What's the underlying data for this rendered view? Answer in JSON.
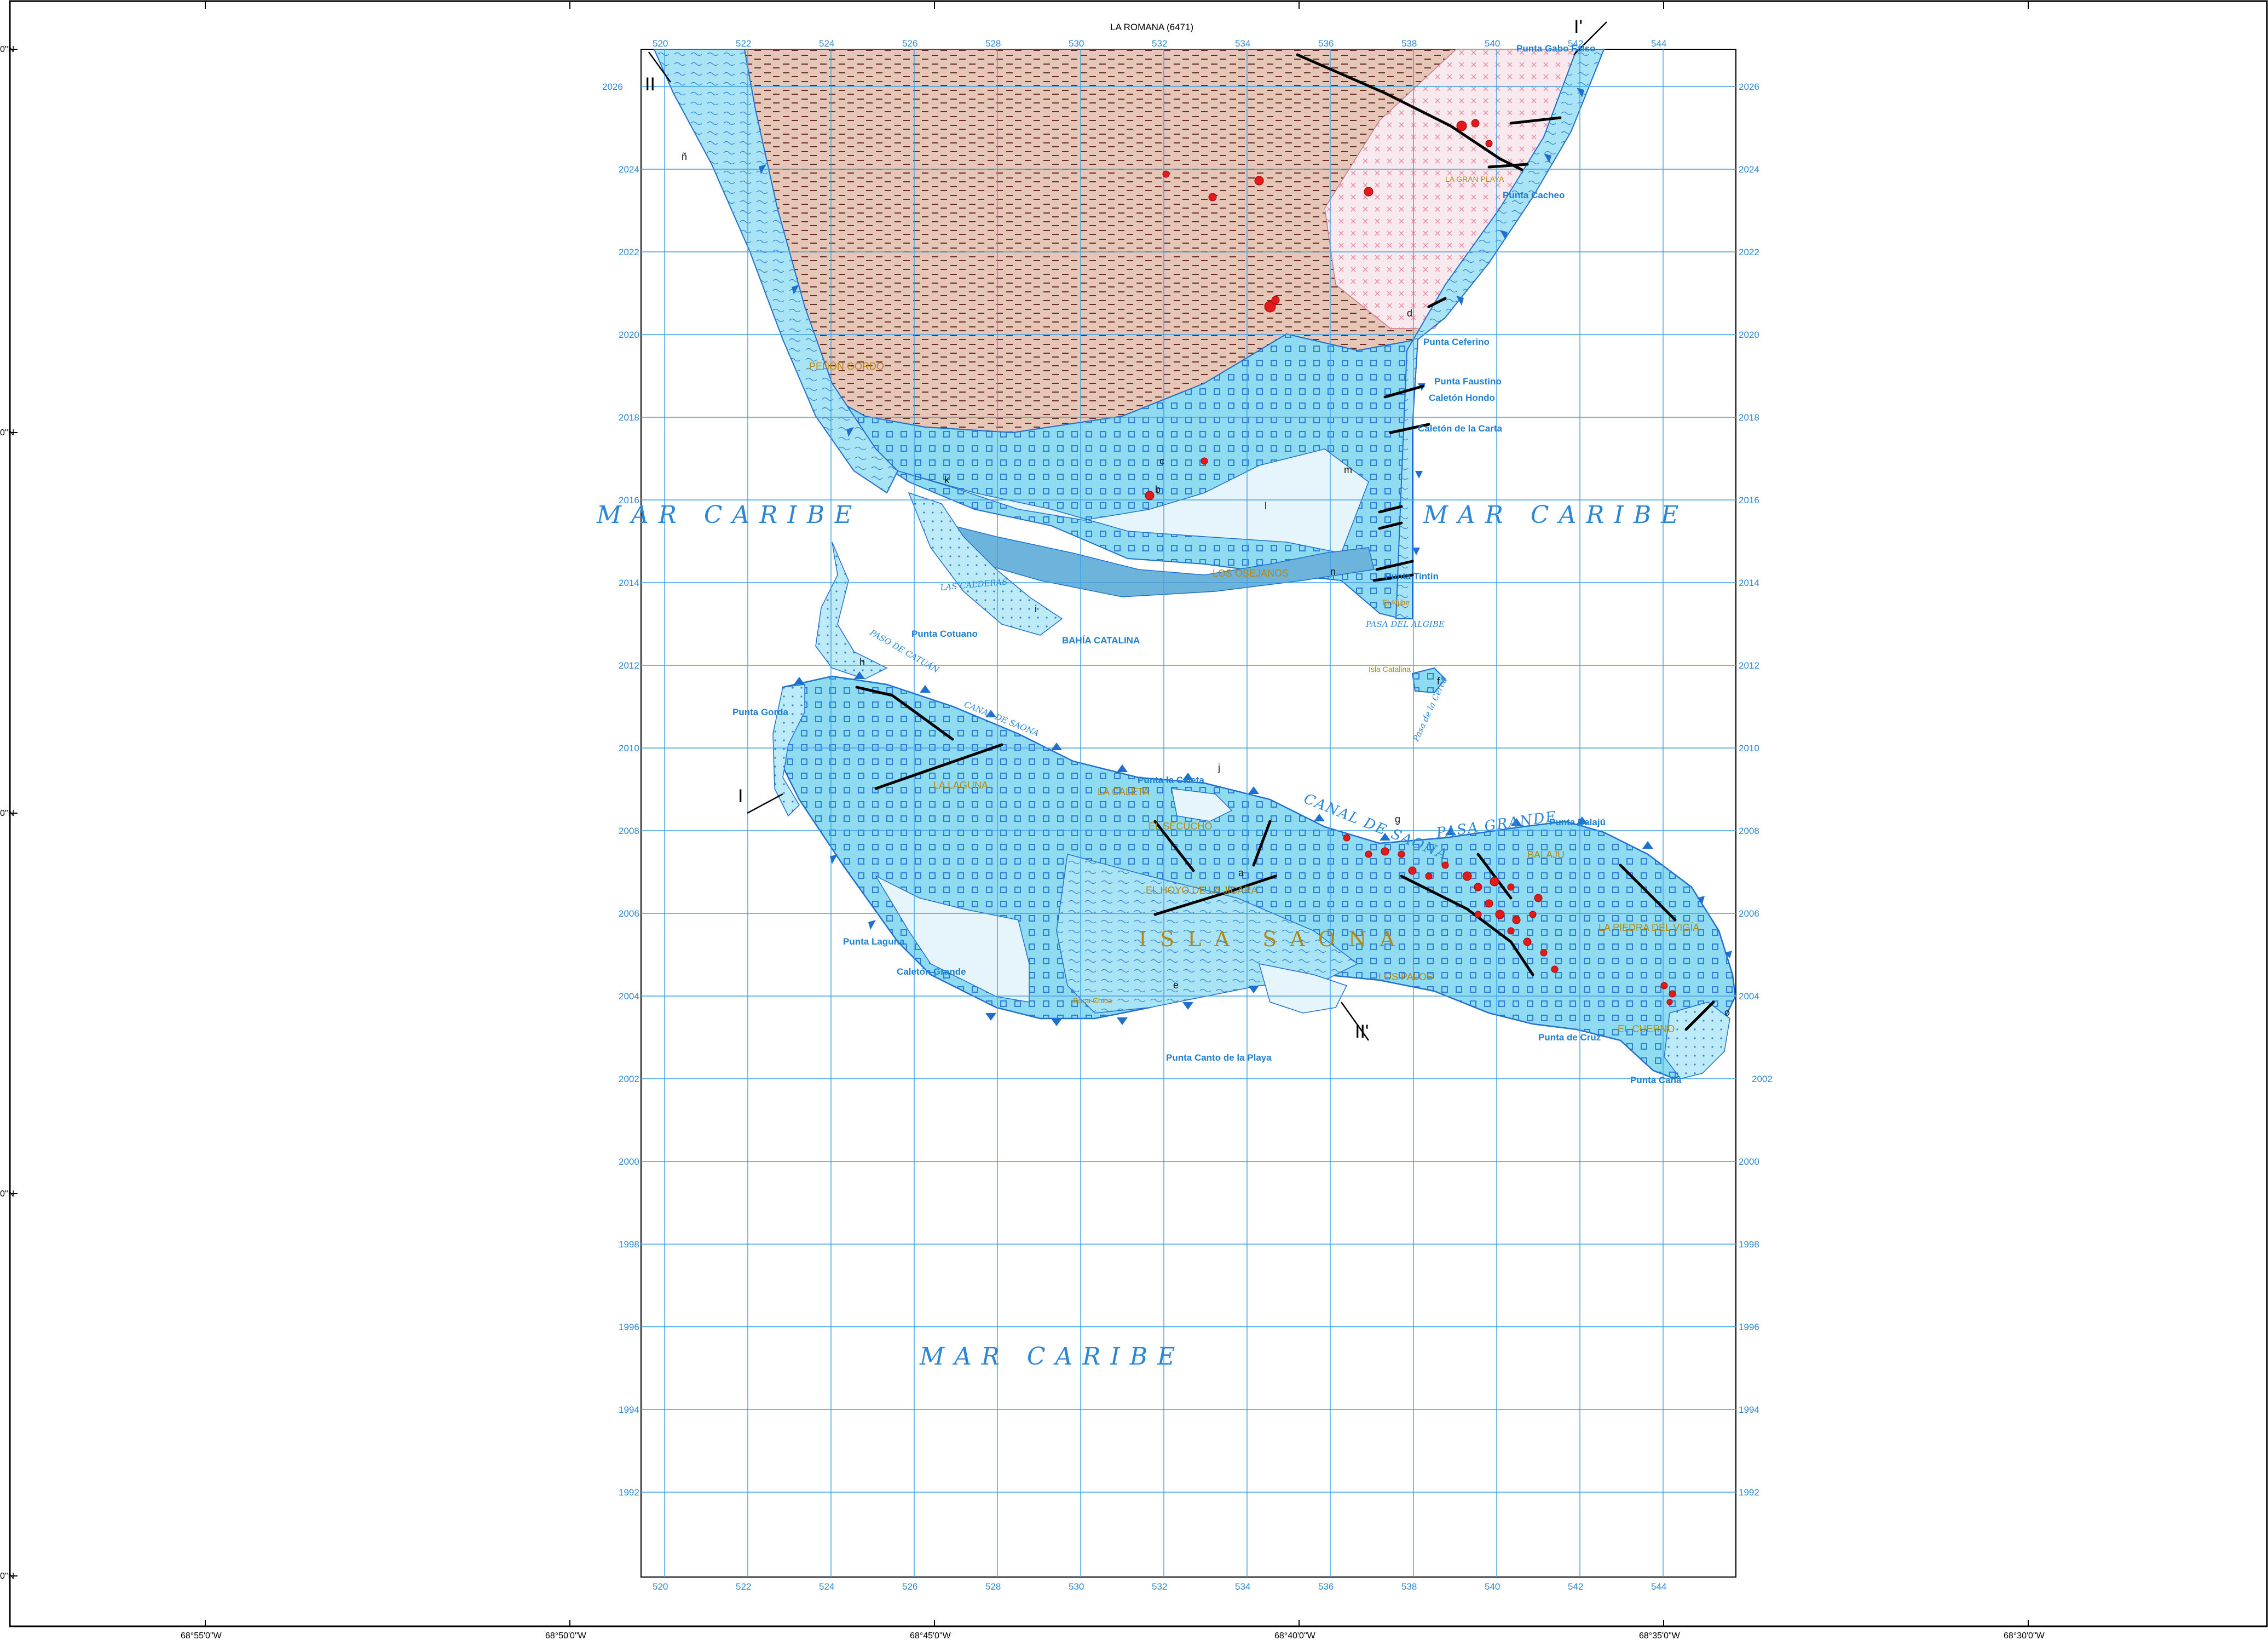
{
  "map": {
    "sheet_title": "LA ROMANA (6471)",
    "colors": {
      "sea_fill": "#ffffff",
      "land_blue": "#8fdcf2",
      "land_pale": "#e4f4fb",
      "land_brown": "#d8b7a5",
      "land_pink": "#f6e6ea",
      "lagoon": "#6fb6dc",
      "grid": "#3fa0e8",
      "fault": "#000000",
      "coast_teeth": "#1f6fd0",
      "outcrop": "#e31a1c"
    },
    "longitude_labels": [
      "68°55'0\"W",
      "68°50'0\"W",
      "68°45'0\"W",
      "68°40'0\"W",
      "68°35'0\"W",
      "68°30'0\"W"
    ],
    "latitude_labels": [
      "0\"N",
      "0\"N",
      "0\"N",
      "0\"N",
      "0\"N"
    ],
    "easting_labels": [
      "520",
      "522",
      "524",
      "526",
      "528",
      "530",
      "532",
      "534",
      "536",
      "538",
      "540",
      "542",
      "544"
    ],
    "northing_labels": [
      "2026",
      "2024",
      "2022",
      "2020",
      "2018",
      "2016",
      "2014",
      "2012",
      "2010",
      "2008",
      "2006",
      "2004",
      "2002",
      "2000",
      "1998",
      "1996",
      "1994",
      "1992"
    ],
    "sea_labels": [
      "M A R   C A R I B E",
      "M A R   C A R I B E",
      "M A R   C A R I B E"
    ],
    "places_blue": [
      "Punta Gabo Falso",
      "Punta Cacheo",
      "Punta Ceferino",
      "Punta Faustino",
      "Caletón Hondo",
      "Caletón de la Carta",
      "Punta Tintín",
      "Punta Cotuano",
      "BAHÍA CATALINA",
      "Punta Gorda",
      "Punta la Caleta",
      "Punta Balajú",
      "Punta Laguna",
      "Caletón Grande",
      "Punta Canto de la Playa",
      "Punta de Cruz",
      "Punta Caña"
    ],
    "places_gold": [
      "PEÑÓN GORDO",
      "LA GRAN PLAYA",
      "LOS OBEJANOS",
      "EL SECUCHO",
      "LA LAGUNA",
      "EL HOYO DE LA JÍCARA",
      "LA CALETA",
      "BALAJÚ",
      "LOS PALOS",
      "LA PIEDRA DEL VIGÍA",
      "EL CUERNO",
      "Boca Chica",
      "Isla Catalina",
      "El Aljibe"
    ],
    "island_name": "I S L A   S A O N A",
    "places_italic": [
      "CANAL DE SAONA",
      "PASA GRANDE",
      "PASA DEL ALGIBE",
      "Pasa de la Cerca",
      "PASO DE CATUÁN",
      "LAS CALDERAS",
      "CANAL DE SAONA"
    ],
    "unit_letters": [
      "a",
      "b",
      "c",
      "d",
      "e",
      "f",
      "g",
      "h",
      "i",
      "j",
      "k",
      "l",
      "m",
      "n",
      "ñ",
      "o"
    ],
    "section_labels": [
      "I",
      "I'",
      "II",
      "II'"
    ]
  }
}
